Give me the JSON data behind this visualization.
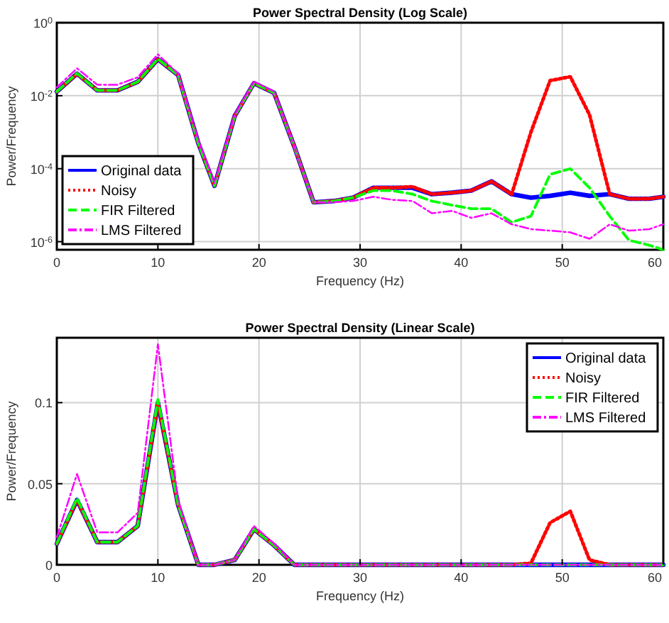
{
  "chart_data": [
    {
      "type": "line",
      "title": "Power Spectral Density (Log Scale)",
      "xlabel": "Frequency (Hz)",
      "ylabel": "Power/Frequency",
      "log": true,
      "grid": true,
      "legend": "bottom left",
      "x": [
        0,
        2,
        4,
        6,
        8,
        10,
        12,
        14,
        15.6,
        17.6,
        19.5,
        21.5,
        23.5,
        25.4,
        27.4,
        29.3,
        31.3,
        33.2,
        35.2,
        37.1,
        39.1,
        41,
        43,
        45,
        46.9,
        48.8,
        50.8,
        52.7,
        54.7,
        56.6,
        58.6,
        60
      ],
      "xlim": [
        0,
        60
      ],
      "xticks": [
        0,
        10,
        20,
        30,
        40,
        50,
        60
      ],
      "ylim": [
        6e-07,
        1
      ],
      "yticks": [
        {
          "value": 1,
          "label": "10$^{0}$"
        },
        {
          "value": 0.01,
          "label": "10$^{-2}$"
        },
        {
          "value": 0.0001,
          "label": "10$^{-4}$"
        },
        {
          "value": 1e-06,
          "label": "10$^{-6}$"
        }
      ],
      "series": [
        {
          "name": "Original data",
          "color": "#0000ff",
          "line_style": "solid",
          "values": [
            0.013,
            0.04,
            0.014,
            0.014,
            0.024,
            0.1,
            0.037,
            0.0005,
            3.4e-05,
            0.0028,
            0.022,
            0.012,
            0.0004,
            1.2e-05,
            1.3e-05,
            1.6e-05,
            3e-05,
            3e-05,
            3e-05,
            2e-05,
            2.2e-05,
            2.5e-05,
            4.5e-05,
            2e-05,
            1.6e-05,
            1.8e-05,
            2.2e-05,
            1.8e-05,
            2e-05,
            1.5e-05,
            1.5e-05,
            1.7e-05
          ]
        },
        {
          "name": "Noisy",
          "color": "#ff0000",
          "line_style": "dotted",
          "values": [
            0.013,
            0.04,
            0.014,
            0.014,
            0.024,
            0.1,
            0.037,
            0.0005,
            3.4e-05,
            0.0028,
            0.022,
            0.012,
            0.0004,
            1.2e-05,
            1.3e-05,
            1.6e-05,
            3e-05,
            3e-05,
            3.2e-05,
            2e-05,
            2.2e-05,
            2.5e-05,
            4.5e-05,
            2e-05,
            0.001,
            0.026,
            0.033,
            0.003,
            2e-05,
            1.5e-05,
            1.5e-05,
            1.7e-05
          ]
        },
        {
          "name": "FIR Filtered",
          "color": "#00ff00",
          "line_style": "dashed",
          "values": [
            0.013,
            0.041,
            0.014,
            0.014,
            0.024,
            0.102,
            0.037,
            0.0005,
            3.4e-05,
            0.0028,
            0.022,
            0.012,
            0.0004,
            1.2e-05,
            1.3e-05,
            1.6e-05,
            2.5e-05,
            2.5e-05,
            2e-05,
            1.3e-05,
            1e-05,
            8e-06,
            8e-06,
            3.4e-06,
            5e-06,
            7e-05,
            0.0001,
            3e-05,
            5e-06,
            1.1e-06,
            8e-07,
            6e-07
          ]
        },
        {
          "name": "LMS Filtered",
          "color": "#ff00ff",
          "line_style": "dashdot",
          "values": [
            0.017,
            0.056,
            0.02,
            0.02,
            0.032,
            0.136,
            0.04,
            0.0006,
            4e-05,
            0.003,
            0.024,
            0.013,
            0.0004,
            1.2e-05,
            1.2e-05,
            1.3e-05,
            1.7e-05,
            1.4e-05,
            1.3e-05,
            6e-06,
            7e-06,
            4.5e-06,
            6e-06,
            3e-06,
            2.2e-06,
            2e-06,
            1.8e-06,
            1.2e-06,
            3e-06,
            2e-06,
            2.2e-06,
            3e-06
          ]
        }
      ]
    },
    {
      "type": "line",
      "title": "Power Spectral Density (Linear Scale)",
      "xlabel": "Frequency (Hz)",
      "ylabel": "Power/Frequency",
      "grid": true,
      "legend": "top right",
      "x": [
        0,
        2,
        4,
        6,
        8,
        10,
        12,
        14,
        15.6,
        17.6,
        19.5,
        21.5,
        23.5,
        25.4,
        27.4,
        29.3,
        31.3,
        33.2,
        35.2,
        37.1,
        39.1,
        41,
        43,
        45,
        46.9,
        48.8,
        50.8,
        52.7,
        54.7,
        56.6,
        58.6,
        60
      ],
      "xlim": [
        0,
        60
      ],
      "xticks": [
        0,
        10,
        20,
        30,
        40,
        50,
        60
      ],
      "ylim": [
        0,
        0.14
      ],
      "yticks": [
        0,
        0.05,
        0.1
      ],
      "series": [
        {
          "name": "Original data",
          "color": "#0000ff",
          "line_style": "solid",
          "values": [
            0.013,
            0.04,
            0.014,
            0.014,
            0.024,
            0.1,
            0.037,
            0,
            0,
            0.003,
            0.022,
            0.012,
            0,
            0,
            0,
            0,
            0,
            0,
            0,
            0,
            0,
            0,
            0,
            0,
            0,
            0,
            0,
            0,
            0,
            0,
            0,
            0
          ]
        },
        {
          "name": "Noisy",
          "color": "#ff0000",
          "line_style": "dotted",
          "values": [
            0.013,
            0.04,
            0.014,
            0.014,
            0.024,
            0.1,
            0.037,
            0,
            0,
            0.003,
            0.022,
            0.012,
            0,
            0,
            0,
            0,
            0,
            0,
            0,
            0,
            0,
            0,
            0,
            0,
            0.001,
            0.026,
            0.033,
            0.003,
            0,
            0,
            0,
            0
          ]
        },
        {
          "name": "FIR Filtered",
          "color": "#00ff00",
          "line_style": "dashed",
          "values": [
            0.013,
            0.041,
            0.014,
            0.014,
            0.024,
            0.102,
            0.037,
            0,
            0,
            0.003,
            0.022,
            0.012,
            0,
            0,
            0,
            0,
            0,
            0,
            0,
            0,
            0,
            0,
            0,
            0,
            0,
            0,
            0,
            0,
            0,
            0,
            0,
            0
          ]
        },
        {
          "name": "LMS Filtered",
          "color": "#ff00ff",
          "line_style": "dashdot",
          "values": [
            0.017,
            0.056,
            0.02,
            0.02,
            0.032,
            0.136,
            0.04,
            0,
            0,
            0.003,
            0.024,
            0.013,
            0,
            0,
            0,
            0,
            0,
            0,
            0,
            0,
            0,
            0,
            0,
            0,
            0,
            0,
            0,
            0,
            0,
            0,
            0,
            0
          ]
        }
      ]
    }
  ]
}
